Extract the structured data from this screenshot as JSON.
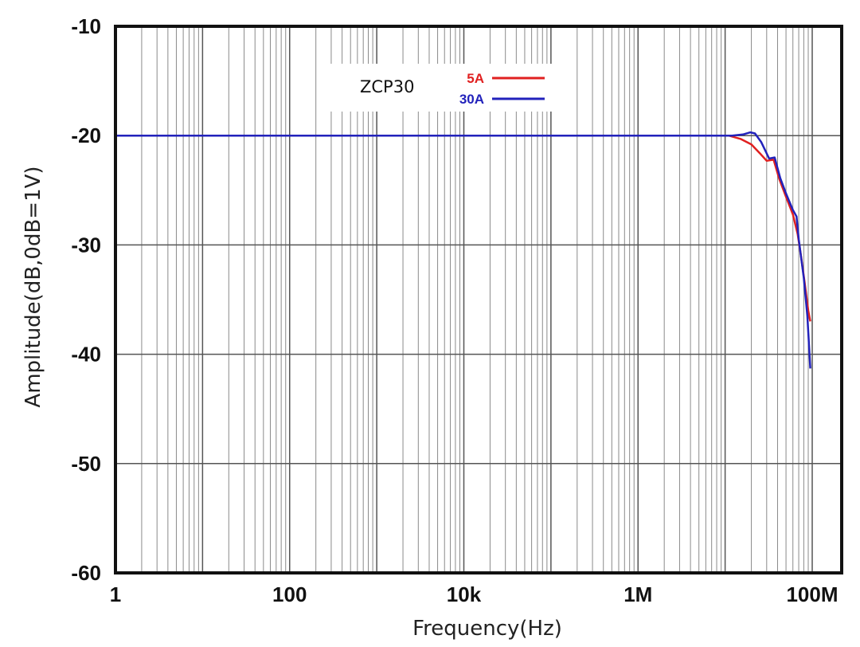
{
  "chart_data": {
    "type": "line",
    "title": "",
    "xlabel": "Frequency(Hz)",
    "ylabel": "Amplitude(dB,0dB=1V)",
    "x_scale": "log",
    "xlim": [
      1,
      100000000
    ],
    "ylim": [
      -60,
      -10
    ],
    "x_ticks": [
      {
        "value": 1,
        "label": "1"
      },
      {
        "value": 100,
        "label": "100"
      },
      {
        "value": 10000,
        "label": "10k"
      },
      {
        "value": 1000000,
        "label": "1M"
      },
      {
        "value": 100000000,
        "label": "100M"
      }
    ],
    "y_ticks": [
      {
        "value": -10,
        "label": "-10"
      },
      {
        "value": -20,
        "label": "-20"
      },
      {
        "value": -30,
        "label": "-30"
      },
      {
        "value": -40,
        "label": "-40"
      },
      {
        "value": -50,
        "label": "-50"
      },
      {
        "value": -60,
        "label": "-60"
      }
    ],
    "grid": true,
    "legend": {
      "title": "ZCP30",
      "position": "top-center"
    },
    "series": [
      {
        "name": "5A",
        "color": "#e02020",
        "points": [
          [
            1,
            -20.0
          ],
          [
            1000000,
            -20.0
          ],
          [
            11000000,
            -20.0
          ],
          [
            15000000,
            -20.3
          ],
          [
            20000000,
            -20.8
          ],
          [
            25000000,
            -21.6
          ],
          [
            30000000,
            -22.3
          ],
          [
            36000000,
            -22.2
          ],
          [
            42000000,
            -24.0
          ],
          [
            50000000,
            -25.6
          ],
          [
            60000000,
            -27.2
          ],
          [
            68000000,
            -29.0
          ],
          [
            75000000,
            -31.2
          ],
          [
            82000000,
            -33.5
          ],
          [
            90000000,
            -36.0
          ],
          [
            95000000,
            -37.0
          ]
        ]
      },
      {
        "name": "30A",
        "color": "#2222bb",
        "points": [
          [
            1,
            -20.0
          ],
          [
            1000000,
            -20.0
          ],
          [
            12000000,
            -20.0
          ],
          [
            16000000,
            -19.9
          ],
          [
            19500000,
            -19.7
          ],
          [
            22000000,
            -19.8
          ],
          [
            26000000,
            -20.6
          ],
          [
            32000000,
            -22.1
          ],
          [
            37000000,
            -22.0
          ],
          [
            43000000,
            -23.9
          ],
          [
            50000000,
            -25.3
          ],
          [
            60000000,
            -26.8
          ],
          [
            66000000,
            -27.4
          ],
          [
            70000000,
            -29.5
          ],
          [
            80000000,
            -33.0
          ],
          [
            88000000,
            -36.5
          ],
          [
            95000000,
            -41.3
          ]
        ]
      }
    ]
  }
}
